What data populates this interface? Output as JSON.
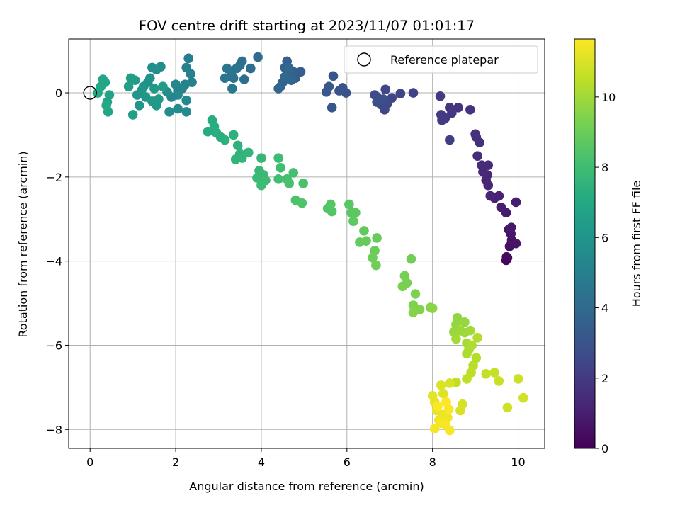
{
  "chart_data": {
    "type": "scatter",
    "title": "FOV centre drift starting at 2023/11/07 01:01:17",
    "xlabel": "Angular distance from reference (arcmin)",
    "ylabel": "Rotation from reference (arcmin)",
    "xlim": [
      -0.5,
      10.62
    ],
    "ylim": [
      -8.45,
      1.28
    ],
    "xticks": [
      {
        "v": 0,
        "label": "0"
      },
      {
        "v": 2,
        "label": "2"
      },
      {
        "v": 4,
        "label": "4"
      },
      {
        "v": 6,
        "label": "6"
      },
      {
        "v": 8,
        "label": "8"
      },
      {
        "v": 10,
        "label": "10"
      }
    ],
    "yticks": [
      {
        "v": 0,
        "label": "0"
      },
      {
        "v": -2,
        "label": "−2"
      },
      {
        "v": -4,
        "label": "−4"
      },
      {
        "v": -6,
        "label": "−6"
      },
      {
        "v": -8,
        "label": "−8"
      }
    ],
    "grid": true,
    "legend": {
      "position": "top-right",
      "entries": [
        "Reference platepar"
      ]
    },
    "reference_point": {
      "x": 0,
      "y": 0
    },
    "colorbar": {
      "label": "Hours from first FF file",
      "colormap": "viridis",
      "range": [
        0,
        11.65
      ],
      "ticks": [
        {
          "v": 0,
          "label": "0"
        },
        {
          "v": 2,
          "label": "2"
        },
        {
          "v": 4,
          "label": "4"
        },
        {
          "v": 6,
          "label": "6"
        },
        {
          "v": 8,
          "label": "8"
        },
        {
          "v": 10,
          "label": "10"
        }
      ]
    },
    "points": [
      {
        "x": 9.72,
        "y": -3.98,
        "h": 0.2
      },
      {
        "x": 9.75,
        "y": -3.92,
        "h": 0.3
      },
      {
        "x": 9.73,
        "y": -3.9,
        "h": 0.35
      },
      {
        "x": 9.8,
        "y": -3.65,
        "h": 0.45
      },
      {
        "x": 9.85,
        "y": -3.5,
        "h": 0.55
      },
      {
        "x": 9.95,
        "y": -3.58,
        "h": 0.6
      },
      {
        "x": 9.83,
        "y": -3.35,
        "h": 0.7
      },
      {
        "x": 9.78,
        "y": -3.25,
        "h": 0.75
      },
      {
        "x": 9.84,
        "y": -3.2,
        "h": 0.8
      },
      {
        "x": 9.72,
        "y": -2.85,
        "h": 0.85
      },
      {
        "x": 9.95,
        "y": -2.6,
        "h": 0.95
      },
      {
        "x": 9.6,
        "y": -2.72,
        "h": 1.0
      },
      {
        "x": 9.55,
        "y": -2.45,
        "h": 1.05
      },
      {
        "x": 9.45,
        "y": -2.5,
        "h": 1.1
      },
      {
        "x": 9.35,
        "y": -2.45,
        "h": 1.15
      },
      {
        "x": 9.3,
        "y": -2.2,
        "h": 1.2
      },
      {
        "x": 9.25,
        "y": -2.08,
        "h": 1.25
      },
      {
        "x": 9.28,
        "y": -1.95,
        "h": 1.3
      },
      {
        "x": 9.18,
        "y": -1.88,
        "h": 1.35
      },
      {
        "x": 9.3,
        "y": -1.72,
        "h": 1.4
      },
      {
        "x": 9.15,
        "y": -1.72,
        "h": 1.45
      },
      {
        "x": 9.05,
        "y": -1.5,
        "h": 1.5
      },
      {
        "x": 9.1,
        "y": -1.18,
        "h": 1.55
      },
      {
        "x": 9.02,
        "y": -1.05,
        "h": 1.6
      },
      {
        "x": 9.0,
        "y": -0.98,
        "h": 1.65
      },
      {
        "x": 8.88,
        "y": -0.4,
        "h": 1.7
      },
      {
        "x": 8.6,
        "y": -0.35,
        "h": 1.75
      },
      {
        "x": 8.4,
        "y": -0.35,
        "h": 1.8
      },
      {
        "x": 8.45,
        "y": -0.48,
        "h": 1.85
      },
      {
        "x": 8.3,
        "y": -0.6,
        "h": 1.9
      },
      {
        "x": 8.2,
        "y": -0.52,
        "h": 1.95
      },
      {
        "x": 8.22,
        "y": -0.65,
        "h": 2.0
      },
      {
        "x": 8.18,
        "y": -0.08,
        "h": 2.05
      },
      {
        "x": 8.4,
        "y": -1.12,
        "h": 2.1
      },
      {
        "x": 7.55,
        "y": 0.0,
        "h": 2.3
      },
      {
        "x": 7.25,
        "y": -0.02,
        "h": 2.35
      },
      {
        "x": 7.05,
        "y": -0.12,
        "h": 2.4
      },
      {
        "x": 6.9,
        "y": 0.08,
        "h": 2.45
      },
      {
        "x": 6.95,
        "y": -0.25,
        "h": 2.5
      },
      {
        "x": 6.88,
        "y": -0.4,
        "h": 2.55
      },
      {
        "x": 6.8,
        "y": -0.28,
        "h": 2.6
      },
      {
        "x": 6.7,
        "y": -0.1,
        "h": 2.65
      },
      {
        "x": 6.65,
        "y": -0.05,
        "h": 2.7
      },
      {
        "x": 6.85,
        "y": -0.15,
        "h": 2.75
      },
      {
        "x": 6.7,
        "y": -0.22,
        "h": 2.8
      },
      {
        "x": 5.98,
        "y": 0.0,
        "h": 2.9
      },
      {
        "x": 5.9,
        "y": 0.12,
        "h": 2.95
      },
      {
        "x": 5.82,
        "y": 0.05,
        "h": 3.0
      },
      {
        "x": 5.68,
        "y": 0.4,
        "h": 3.05
      },
      {
        "x": 5.65,
        "y": -0.35,
        "h": 3.1
      },
      {
        "x": 5.58,
        "y": 0.15,
        "h": 3.15
      },
      {
        "x": 5.52,
        "y": 0.02,
        "h": 3.2
      },
      {
        "x": 4.92,
        "y": 0.5,
        "h": 3.4
      },
      {
        "x": 4.8,
        "y": 0.35,
        "h": 3.45
      },
      {
        "x": 4.75,
        "y": 0.5,
        "h": 3.5
      },
      {
        "x": 4.65,
        "y": 0.45,
        "h": 3.55
      },
      {
        "x": 4.6,
        "y": 0.75,
        "h": 3.6
      },
      {
        "x": 4.55,
        "y": 0.6,
        "h": 3.65
      },
      {
        "x": 4.5,
        "y": 0.25,
        "h": 3.7
      },
      {
        "x": 4.45,
        "y": 0.15,
        "h": 3.75
      },
      {
        "x": 4.4,
        "y": 0.1,
        "h": 3.8
      },
      {
        "x": 4.7,
        "y": 0.3,
        "h": 3.85
      },
      {
        "x": 4.55,
        "y": 0.38,
        "h": 3.9
      },
      {
        "x": 4.65,
        "y": 0.58,
        "h": 3.95
      },
      {
        "x": 3.92,
        "y": 0.85,
        "h": 4.1
      },
      {
        "x": 3.75,
        "y": 0.58,
        "h": 4.15
      },
      {
        "x": 3.55,
        "y": 0.75,
        "h": 4.2
      },
      {
        "x": 3.6,
        "y": 0.32,
        "h": 4.25
      },
      {
        "x": 3.5,
        "y": 0.65,
        "h": 4.3
      },
      {
        "x": 3.42,
        "y": 0.58,
        "h": 4.35
      },
      {
        "x": 3.35,
        "y": 0.35,
        "h": 4.4
      },
      {
        "x": 3.3,
        "y": 0.5,
        "h": 4.45
      },
      {
        "x": 3.2,
        "y": 0.58,
        "h": 4.5
      },
      {
        "x": 3.15,
        "y": 0.35,
        "h": 4.55
      },
      {
        "x": 3.32,
        "y": 0.1,
        "h": 4.6
      },
      {
        "x": 2.3,
        "y": 0.82,
        "h": 4.9
      },
      {
        "x": 2.25,
        "y": 0.6,
        "h": 5.0
      },
      {
        "x": 2.35,
        "y": 0.45,
        "h": 5.05
      },
      {
        "x": 2.38,
        "y": 0.25,
        "h": 5.1
      },
      {
        "x": 2.22,
        "y": 0.2,
        "h": 5.15
      },
      {
        "x": 2.15,
        "y": 0.1,
        "h": 5.2
      },
      {
        "x": 2.05,
        "y": 0.05,
        "h": 5.25
      },
      {
        "x": 2.0,
        "y": 0.2,
        "h": 5.3
      },
      {
        "x": 1.9,
        "y": -0.1,
        "h": 5.35
      },
      {
        "x": 2.05,
        "y": -0.05,
        "h": 5.4
      },
      {
        "x": 2.25,
        "y": -0.18,
        "h": 5.45
      },
      {
        "x": 2.25,
        "y": -0.45,
        "h": 5.5
      },
      {
        "x": 2.05,
        "y": -0.38,
        "h": 5.55
      },
      {
        "x": 1.85,
        "y": -0.45,
        "h": 5.6
      },
      {
        "x": 1.8,
        "y": 0.02,
        "h": 5.65
      },
      {
        "x": 1.65,
        "y": 0.62,
        "h": 5.7
      },
      {
        "x": 1.55,
        "y": 0.55,
        "h": 5.75
      },
      {
        "x": 1.45,
        "y": 0.6,
        "h": 5.8
      },
      {
        "x": 1.4,
        "y": 0.35,
        "h": 5.85
      },
      {
        "x": 1.35,
        "y": 0.25,
        "h": 5.9
      },
      {
        "x": 1.25,
        "y": 0.15,
        "h": 5.95
      },
      {
        "x": 1.2,
        "y": 0.05,
        "h": 6.0
      },
      {
        "x": 1.1,
        "y": -0.05,
        "h": 6.05
      },
      {
        "x": 1.15,
        "y": -0.3,
        "h": 6.1
      },
      {
        "x": 1.3,
        "y": -0.1,
        "h": 6.15
      },
      {
        "x": 1.45,
        "y": -0.2,
        "h": 6.2
      },
      {
        "x": 1.55,
        "y": -0.3,
        "h": 6.25
      },
      {
        "x": 1.6,
        "y": -0.15,
        "h": 6.3
      },
      {
        "x": 1.5,
        "y": 0.1,
        "h": 6.35
      },
      {
        "x": 1.7,
        "y": 0.15,
        "h": 6.4
      },
      {
        "x": 1.05,
        "y": 0.3,
        "h": 6.45
      },
      {
        "x": 0.95,
        "y": 0.35,
        "h": 6.5
      },
      {
        "x": 0.9,
        "y": 0.15,
        "h": 6.55
      },
      {
        "x": 1.0,
        "y": -0.52,
        "h": 6.6
      },
      {
        "x": 0.45,
        "y": -0.05,
        "h": 6.7
      },
      {
        "x": 0.4,
        "y": -0.22,
        "h": 6.75
      },
      {
        "x": 0.42,
        "y": -0.45,
        "h": 6.8
      },
      {
        "x": 0.35,
        "y": 0.25,
        "h": 6.85
      },
      {
        "x": 0.3,
        "y": 0.32,
        "h": 6.9
      },
      {
        "x": 0.25,
        "y": 0.15,
        "h": 6.95
      },
      {
        "x": 0.18,
        "y": 0.0,
        "h": 7.0
      },
      {
        "x": 0.38,
        "y": -0.3,
        "h": 7.05
      },
      {
        "x": 2.75,
        "y": -0.92,
        "h": 7.1
      },
      {
        "x": 2.85,
        "y": -0.65,
        "h": 7.15
      },
      {
        "x": 2.9,
        "y": -0.8,
        "h": 7.2
      },
      {
        "x": 2.95,
        "y": -0.95,
        "h": 7.25
      },
      {
        "x": 3.05,
        "y": -1.05,
        "h": 7.3
      },
      {
        "x": 3.15,
        "y": -1.12,
        "h": 7.35
      },
      {
        "x": 3.35,
        "y": -1.0,
        "h": 7.4
      },
      {
        "x": 3.45,
        "y": -1.25,
        "h": 7.45
      },
      {
        "x": 3.5,
        "y": -1.45,
        "h": 7.5
      },
      {
        "x": 3.4,
        "y": -1.58,
        "h": 7.55
      },
      {
        "x": 3.55,
        "y": -1.55,
        "h": 7.6
      },
      {
        "x": 3.7,
        "y": -1.42,
        "h": 7.65
      },
      {
        "x": 4.0,
        "y": -1.55,
        "h": 7.7
      },
      {
        "x": 3.95,
        "y": -1.85,
        "h": 7.75
      },
      {
        "x": 4.05,
        "y": -1.95,
        "h": 7.8
      },
      {
        "x": 3.9,
        "y": -2.02,
        "h": 7.85
      },
      {
        "x": 4.1,
        "y": -2.08,
        "h": 7.9
      },
      {
        "x": 4.0,
        "y": -2.2,
        "h": 7.95
      },
      {
        "x": 4.4,
        "y": -1.55,
        "h": 8.0
      },
      {
        "x": 4.45,
        "y": -1.78,
        "h": 8.05
      },
      {
        "x": 4.4,
        "y": -2.05,
        "h": 8.1
      },
      {
        "x": 4.6,
        "y": -2.05,
        "h": 8.15
      },
      {
        "x": 4.75,
        "y": -1.9,
        "h": 8.2
      },
      {
        "x": 4.65,
        "y": -2.15,
        "h": 8.25
      },
      {
        "x": 4.98,
        "y": -2.15,
        "h": 8.3
      },
      {
        "x": 4.8,
        "y": -2.55,
        "h": 8.35
      },
      {
        "x": 4.95,
        "y": -2.62,
        "h": 8.4
      },
      {
        "x": 5.55,
        "y": -2.75,
        "h": 8.45
      },
      {
        "x": 5.65,
        "y": -2.82,
        "h": 8.5
      },
      {
        "x": 5.62,
        "y": -2.65,
        "h": 8.55
      },
      {
        "x": 6.05,
        "y": -2.65,
        "h": 8.6
      },
      {
        "x": 6.1,
        "y": -2.85,
        "h": 8.65
      },
      {
        "x": 6.2,
        "y": -2.85,
        "h": 8.7
      },
      {
        "x": 6.15,
        "y": -3.05,
        "h": 8.75
      },
      {
        "x": 6.4,
        "y": -3.28,
        "h": 8.8
      },
      {
        "x": 6.3,
        "y": -3.55,
        "h": 8.85
      },
      {
        "x": 6.45,
        "y": -3.52,
        "h": 8.9
      },
      {
        "x": 6.7,
        "y": -3.45,
        "h": 8.95
      },
      {
        "x": 6.65,
        "y": -3.75,
        "h": 9.0
      },
      {
        "x": 6.6,
        "y": -3.92,
        "h": 9.05
      },
      {
        "x": 6.68,
        "y": -4.1,
        "h": 9.1
      },
      {
        "x": 7.5,
        "y": -3.95,
        "h": 9.15
      },
      {
        "x": 7.35,
        "y": -4.35,
        "h": 9.2
      },
      {
        "x": 7.4,
        "y": -4.52,
        "h": 9.25
      },
      {
        "x": 7.3,
        "y": -4.6,
        "h": 9.3
      },
      {
        "x": 7.6,
        "y": -4.78,
        "h": 9.35
      },
      {
        "x": 7.55,
        "y": -5.05,
        "h": 9.4
      },
      {
        "x": 7.7,
        "y": -5.15,
        "h": 9.45
      },
      {
        "x": 7.55,
        "y": -5.22,
        "h": 9.5
      },
      {
        "x": 7.95,
        "y": -5.1,
        "h": 9.55
      },
      {
        "x": 8.0,
        "y": -5.12,
        "h": 9.6
      },
      {
        "x": 8.58,
        "y": -5.35,
        "h": 9.7
      },
      {
        "x": 8.55,
        "y": -5.5,
        "h": 9.75
      },
      {
        "x": 8.75,
        "y": -5.45,
        "h": 9.8
      },
      {
        "x": 8.5,
        "y": -5.68,
        "h": 9.85
      },
      {
        "x": 8.65,
        "y": -5.65,
        "h": 9.9
      },
      {
        "x": 8.75,
        "y": -5.7,
        "h": 9.95
      },
      {
        "x": 8.88,
        "y": -5.65,
        "h": 10.0
      },
      {
        "x": 8.55,
        "y": -5.85,
        "h": 10.05
      },
      {
        "x": 8.8,
        "y": -5.95,
        "h": 10.1
      },
      {
        "x": 8.85,
        "y": -6.1,
        "h": 10.15
      },
      {
        "x": 8.8,
        "y": -6.2,
        "h": 10.2
      },
      {
        "x": 8.92,
        "y": -6.0,
        "h": 10.25
      },
      {
        "x": 9.05,
        "y": -5.82,
        "h": 10.3
      },
      {
        "x": 9.02,
        "y": -6.3,
        "h": 10.35
      },
      {
        "x": 8.95,
        "y": -6.48,
        "h": 10.4
      },
      {
        "x": 8.9,
        "y": -6.65,
        "h": 10.45
      },
      {
        "x": 8.8,
        "y": -6.8,
        "h": 10.5
      },
      {
        "x": 8.55,
        "y": -6.88,
        "h": 10.55
      },
      {
        "x": 9.25,
        "y": -6.68,
        "h": 10.6
      },
      {
        "x": 9.45,
        "y": -6.65,
        "h": 10.65
      },
      {
        "x": 9.55,
        "y": -6.85,
        "h": 10.7
      },
      {
        "x": 10.0,
        "y": -6.8,
        "h": 10.75
      },
      {
        "x": 9.75,
        "y": -7.48,
        "h": 10.8
      },
      {
        "x": 10.12,
        "y": -7.25,
        "h": 10.85
      },
      {
        "x": 8.7,
        "y": -7.4,
        "h": 10.9
      },
      {
        "x": 8.65,
        "y": -7.55,
        "h": 10.95
      },
      {
        "x": 8.4,
        "y": -6.9,
        "h": 11.0
      },
      {
        "x": 8.2,
        "y": -6.95,
        "h": 11.05
      },
      {
        "x": 8.25,
        "y": -7.15,
        "h": 11.1
      },
      {
        "x": 8.0,
        "y": -7.2,
        "h": 11.15
      },
      {
        "x": 8.05,
        "y": -7.35,
        "h": 11.2
      },
      {
        "x": 8.1,
        "y": -7.55,
        "h": 11.25
      },
      {
        "x": 8.25,
        "y": -7.65,
        "h": 11.3
      },
      {
        "x": 8.15,
        "y": -7.78,
        "h": 11.35
      },
      {
        "x": 8.35,
        "y": -7.72,
        "h": 11.4
      },
      {
        "x": 8.2,
        "y": -7.85,
        "h": 11.45
      },
      {
        "x": 8.05,
        "y": -7.98,
        "h": 11.5
      },
      {
        "x": 8.4,
        "y": -8.02,
        "h": 11.52
      },
      {
        "x": 8.3,
        "y": -7.88,
        "h": 11.55
      },
      {
        "x": 8.38,
        "y": -7.52,
        "h": 11.58
      },
      {
        "x": 8.12,
        "y": -7.45,
        "h": 11.6
      },
      {
        "x": 8.32,
        "y": -7.35,
        "h": 11.62
      }
    ]
  }
}
